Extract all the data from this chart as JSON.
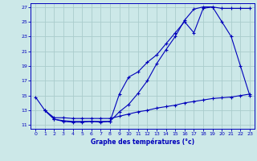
{
  "xlabel": "Graphe des températures (°c)",
  "bg_color": "#cce8e8",
  "grid_color": "#aacccc",
  "line_color": "#0000bb",
  "xlim": [
    -0.5,
    23.5
  ],
  "ylim": [
    10.5,
    27.5
  ],
  "yticks": [
    11,
    13,
    15,
    17,
    19,
    21,
    23,
    25,
    27
  ],
  "xticks": [
    0,
    1,
    2,
    3,
    4,
    5,
    6,
    7,
    8,
    9,
    10,
    11,
    12,
    13,
    14,
    15,
    16,
    17,
    18,
    19,
    20,
    21,
    22,
    23
  ],
  "line1_x": [
    0,
    1,
    2,
    3,
    4,
    5,
    6,
    7,
    8,
    9,
    10,
    11,
    12,
    13,
    14,
    15,
    16,
    17,
    18,
    19,
    20,
    21,
    22,
    23
  ],
  "line1_y": [
    14.8,
    13.0,
    11.8,
    11.6,
    11.5,
    11.5,
    11.5,
    11.5,
    11.5,
    15.2,
    17.5,
    18.2,
    19.5,
    20.5,
    22.0,
    23.5,
    25.0,
    23.5,
    26.8,
    27.0,
    25.0,
    23.0,
    19.0,
    15.0
  ],
  "line2_x": [
    1,
    2,
    3,
    4,
    5,
    6,
    7,
    8,
    9,
    10,
    11,
    12,
    13,
    14,
    15,
    16,
    17,
    18,
    19,
    20,
    21,
    22,
    23
  ],
  "line2_y": [
    13.0,
    11.8,
    11.5,
    11.4,
    11.4,
    11.5,
    11.4,
    11.5,
    12.8,
    13.8,
    15.3,
    17.0,
    19.3,
    21.2,
    23.0,
    25.2,
    26.7,
    27.0,
    27.0,
    26.8,
    26.8,
    26.8,
    26.8
  ],
  "line3_x": [
    1,
    2,
    3,
    4,
    5,
    6,
    7,
    8,
    9,
    10,
    11,
    12,
    13,
    14,
    15,
    16,
    17,
    18,
    19,
    20,
    21,
    22,
    23
  ],
  "line3_y": [
    13.0,
    12.0,
    12.0,
    11.9,
    11.9,
    11.9,
    11.9,
    11.9,
    12.2,
    12.5,
    12.8,
    13.0,
    13.3,
    13.5,
    13.7,
    14.0,
    14.2,
    14.4,
    14.6,
    14.7,
    14.8,
    15.0,
    15.2
  ]
}
